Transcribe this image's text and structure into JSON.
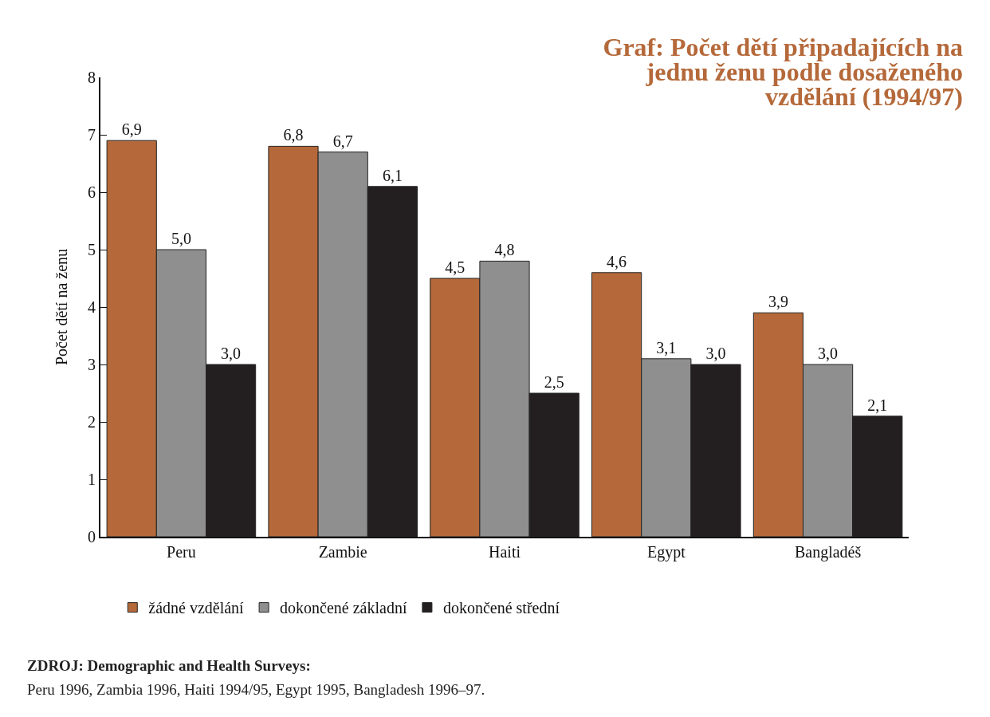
{
  "chart_data": {
    "type": "bar",
    "title": "Graf: Počet dětí připadajících na jednu ženu podle dosaženého vzdělání (1994/97)",
    "ylabel": "Počet dětí na ženu",
    "categories": [
      "Peru",
      "Zambie",
      "Haiti",
      "Egypt",
      "Bangladéš"
    ],
    "series": [
      {
        "name": "žádné vzdělání",
        "color": "#b5693a",
        "values": [
          6.9,
          6.8,
          4.5,
          4.6,
          3.9
        ],
        "value_labels": [
          "6,9",
          "6,8",
          "4,5",
          "4,6",
          "3,9"
        ]
      },
      {
        "name": "dokončené základní",
        "color": "#8f8f8f",
        "values": [
          5.0,
          6.7,
          4.8,
          3.1,
          3.0
        ],
        "value_labels": [
          "5,0",
          "6,7",
          "4,8",
          "3,1",
          "3,0"
        ]
      },
      {
        "name": "dokončené střední",
        "color": "#231f20",
        "values": [
          3.0,
          6.1,
          2.5,
          3.0,
          2.1
        ],
        "value_labels": [
          "3,0",
          "6,1",
          "2,5",
          "3,0",
          "2,1"
        ]
      }
    ],
    "ylim": [
      0,
      8
    ],
    "yticks": [
      0,
      1,
      2,
      3,
      4,
      5,
      6,
      7,
      8
    ],
    "grid": false,
    "legend": "bottom",
    "annotations": [
      "ZDROJ: Demographic and Health Surveys:",
      "Peru 1996, Zambia 1996, Haiti 1994/95, Egypt 1995, Bangladesh 1996–97."
    ]
  }
}
